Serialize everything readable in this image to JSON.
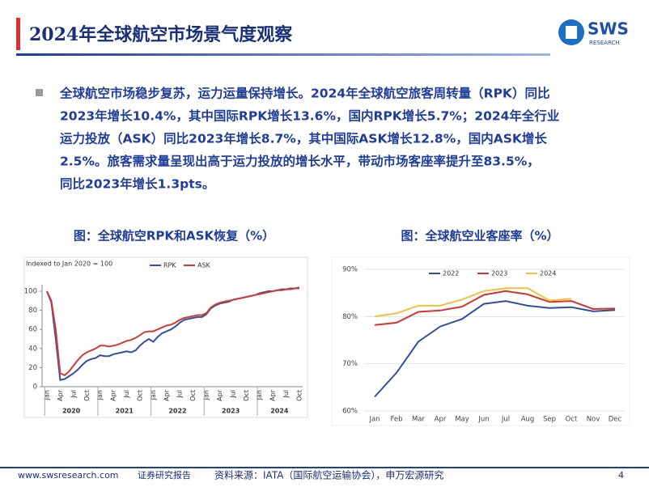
{
  "header": {
    "title": "2024年全球航空市场景气度观察",
    "logo_main": "SWS",
    "logo_sub": "RESEARCH"
  },
  "paragraph": [
    "全球航空市场稳步复苏，运力运量保持增长。2024年全球航空旅客周转量（RPK）同比",
    "2023年增长10.4%，其中国际RPK增长13.6%，国内RPK增长5.7%；2024年全行业",
    "运力投放（ASK）同比2023年增长8.7%，其中国际ASK增长12.8%，国内ASK增长",
    "2.5%。旅客需求量呈现出高于运力投放的增长水平，带动市场客座率提升至83.5%，",
    "同比2023年增长1.3pts。"
  ],
  "captions": [
    "图：全球航空RPK和ASK恢复（%）",
    "图：全球航空业客座率（%）"
  ],
  "chart_data": [
    {
      "type": "line",
      "subtitle": "Indexed to Jan 2020 = 100",
      "categories": [
        "Jan",
        null,
        null,
        "Apr",
        null,
        null,
        "Jul",
        null,
        null,
        "Oct",
        null,
        null,
        "Jan",
        null,
        null,
        "Apr",
        null,
        null,
        "Jul",
        null,
        null,
        "Oct",
        null,
        null,
        "Jan",
        null,
        null,
        "Apr",
        null,
        null,
        "Jul",
        null,
        null,
        "Oct",
        null,
        null,
        "Jan",
        null,
        null,
        "Apr",
        null,
        null,
        "Jul",
        null,
        null,
        "Oct",
        null,
        null,
        "Jan",
        null,
        null,
        "Apr",
        null,
        null,
        "Jul",
        null,
        null,
        "Oct"
      ],
      "year_labels": [
        "2020",
        "2021",
        "2022",
        "2023",
        "2024"
      ],
      "series": [
        {
          "name": "RPK",
          "color": "#2f4fa8",
          "values": [
            100,
            88,
            50,
            7,
            8,
            11,
            14,
            18,
            23,
            27,
            29,
            30,
            33,
            32,
            32,
            34,
            35,
            36,
            37,
            36,
            38,
            43,
            47,
            50,
            47,
            52,
            56,
            58,
            60,
            63,
            67,
            70,
            71,
            72,
            73,
            73,
            76,
            82,
            85,
            87,
            88,
            89,
            91,
            92,
            93,
            94,
            95,
            96,
            98,
            99,
            100,
            100,
            101,
            102,
            102,
            103,
            103,
            104
          ]
        },
        {
          "name": "ASK",
          "color": "#d23a35",
          "values": [
            100,
            90,
            60,
            14,
            12,
            16,
            22,
            28,
            33,
            36,
            38,
            40,
            43,
            43,
            42,
            43,
            44,
            46,
            48,
            49,
            51,
            54,
            57,
            58,
            58,
            60,
            62,
            64,
            65,
            67,
            70,
            72,
            73,
            74,
            75,
            75,
            77,
            83,
            86,
            88,
            89,
            90,
            91,
            92,
            93,
            94,
            95,
            96,
            97,
            98,
            99,
            100,
            101,
            101,
            102,
            102,
            103,
            103
          ]
        }
      ],
      "ylim": [
        0,
        100
      ],
      "yticks": [
        0,
        20,
        40,
        60,
        80,
        100
      ],
      "grid": false,
      "legend": "top"
    },
    {
      "type": "line",
      "categories": [
        "Jan",
        "Feb",
        "Mar",
        "Apr",
        "May",
        "Jun",
        "Jul",
        "Aug",
        "Sep",
        "Oct",
        "Nov",
        "Dec"
      ],
      "series": [
        {
          "name": "2022",
          "color": "#2e4f9f",
          "values": [
            63,
            68.1,
            74.7,
            77.9,
            79.5,
            82.7,
            83.3,
            82.3,
            81.8,
            82,
            81.1,
            81.4
          ]
        },
        {
          "name": "2023",
          "color": "#d9312d",
          "values": [
            78.2,
            78.7,
            81,
            81.3,
            82.1,
            84.6,
            85.4,
            84.7,
            83.1,
            83.3,
            81.6,
            81.7
          ]
        },
        {
          "name": "2024",
          "color": "#f0c23c",
          "values": [
            80,
            80.7,
            82.3,
            82.3,
            83.6,
            85.4,
            86,
            86,
            83.4,
            83.8,
            null,
            null
          ]
        }
      ],
      "ylim": [
        60,
        90
      ],
      "yticks": [
        {
          "value": 60,
          "label": "60%"
        },
        {
          "value": 70,
          "label": "70%"
        },
        {
          "value": 80,
          "label": "80%"
        },
        {
          "value": 90,
          "label": "90%"
        }
      ],
      "grid": true,
      "legend": "top"
    }
  ],
  "footer": {
    "site": "www.swsresearch.com",
    "tag": "证券研究报告",
    "source": "资料来源：IATA（国际航空运输协会），申万宏源研究",
    "page": "4"
  }
}
